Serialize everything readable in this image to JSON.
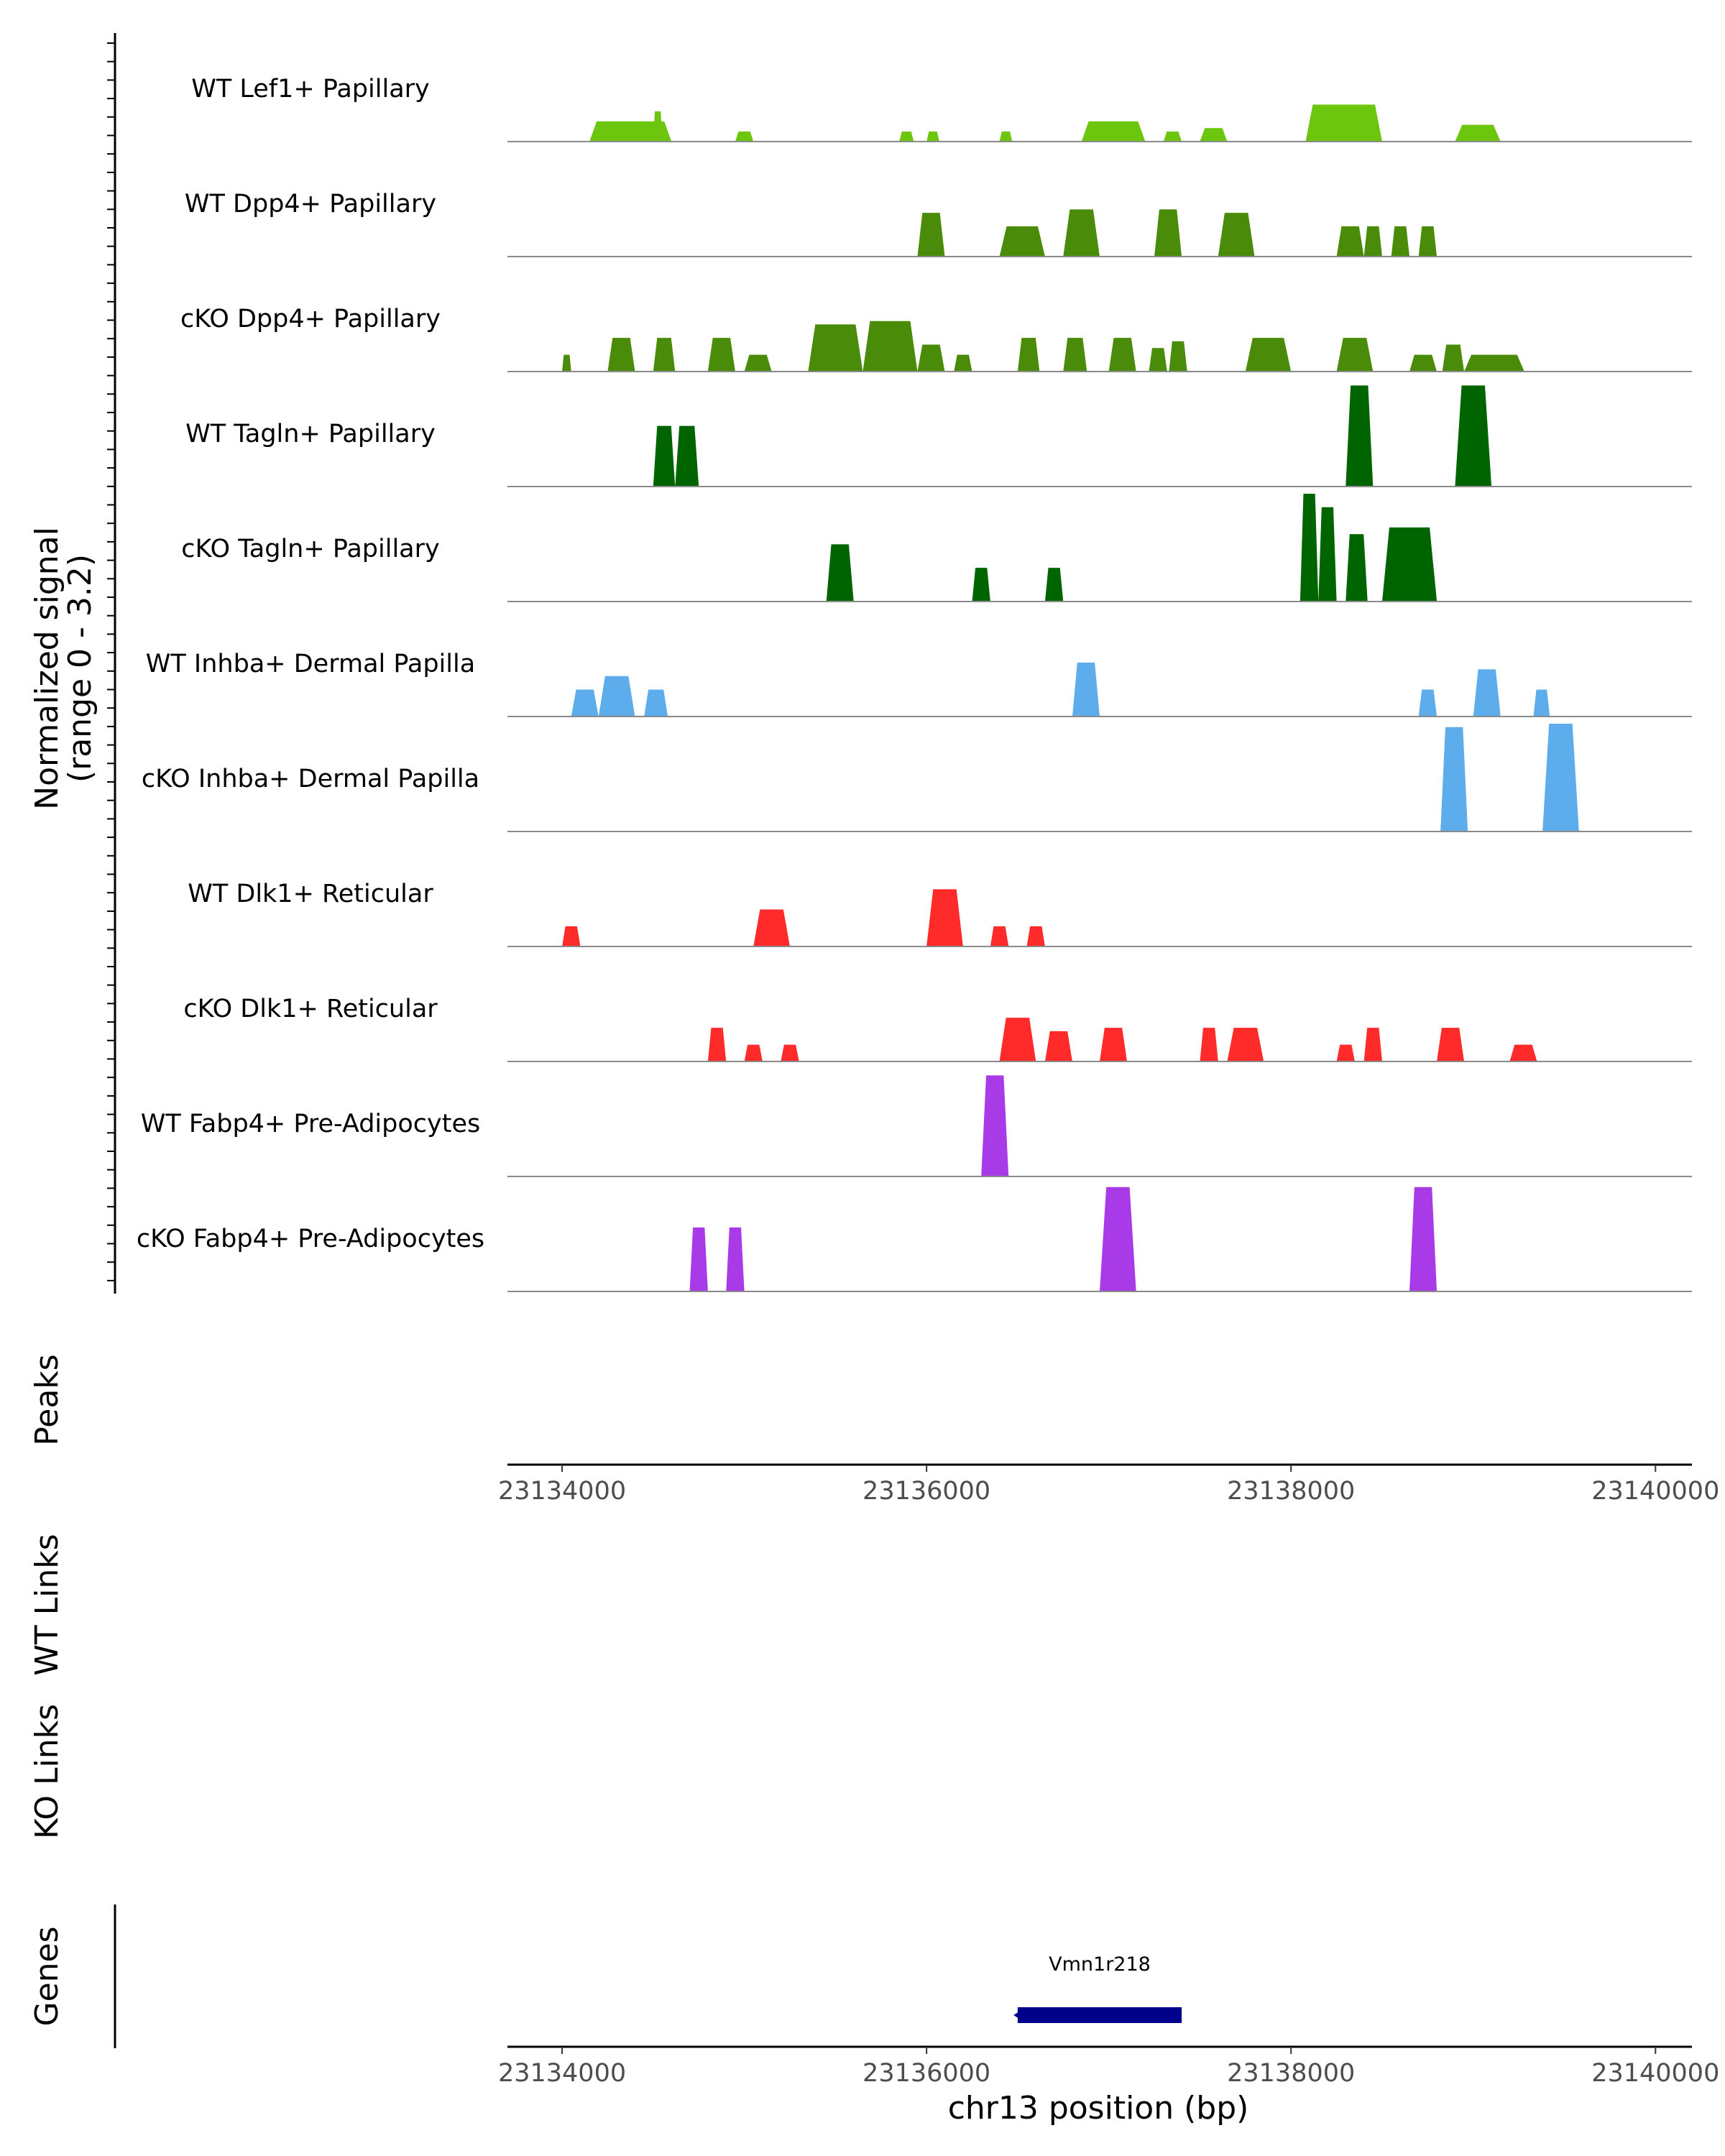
{
  "chart_data": {
    "type": "area",
    "chromosome": "chr13",
    "xlim": [
      23133700,
      23140200
    ],
    "x_ticks": [
      23134000,
      23136000,
      23138000,
      23140000
    ],
    "x_tick_labels": [
      "23134000",
      "23136000",
      "23138000",
      "23140000"
    ],
    "xlabel": "chr13 position (bp)",
    "ylabel_line1": "Normalized signal",
    "ylabel_line2": "(range 0 - 3.2)",
    "ylim": [
      0,
      3.2
    ],
    "panel_labels": {
      "peaks": "Peaks",
      "wt_links": "WT Links",
      "ko_links": "KO Links",
      "genes": "Genes"
    },
    "tracks": [
      {
        "name": "WT Lef1+ Papillary",
        "color": "#6CC60D",
        "peaks": [
          [
            23134150,
            23134600,
            0.6
          ],
          [
            23134500,
            23134550,
            0.9
          ],
          [
            23134950,
            23135050,
            0.3
          ],
          [
            23135850,
            23135930,
            0.3
          ],
          [
            23136000,
            23136070,
            0.3
          ],
          [
            23136400,
            23136470,
            0.3
          ],
          [
            23136850,
            23137200,
            0.6
          ],
          [
            23137300,
            23137400,
            0.3
          ],
          [
            23137500,
            23137650,
            0.4
          ],
          [
            23138080,
            23138500,
            1.1
          ],
          [
            23138900,
            23139150,
            0.5
          ]
        ]
      },
      {
        "name": "WT Dpp4+ Papillary",
        "color": "#4A8C0A",
        "peaks": [
          [
            23135950,
            23136100,
            1.3
          ],
          [
            23136400,
            23136650,
            0.9
          ],
          [
            23136750,
            23136950,
            1.4
          ],
          [
            23137250,
            23137400,
            1.4
          ],
          [
            23137600,
            23137800,
            1.3
          ],
          [
            23138250,
            23138400,
            0.9
          ],
          [
            23138400,
            23138500,
            0.9
          ],
          [
            23138550,
            23138650,
            0.9
          ],
          [
            23138700,
            23138800,
            0.9
          ]
        ]
      },
      {
        "name": "cKO Dpp4+ Papillary",
        "color": "#4A8C0A",
        "peaks": [
          [
            23134000,
            23134050,
            0.5
          ],
          [
            23134250,
            23134400,
            1.0
          ],
          [
            23134500,
            23134620,
            1.0
          ],
          [
            23134800,
            23134950,
            1.0
          ],
          [
            23135000,
            23135150,
            0.5
          ],
          [
            23135350,
            23135650,
            1.4
          ],
          [
            23135650,
            23135950,
            1.5
          ],
          [
            23135950,
            23136100,
            0.8
          ],
          [
            23136150,
            23136250,
            0.5
          ],
          [
            23136500,
            23136620,
            1.0
          ],
          [
            23136750,
            23136880,
            1.0
          ],
          [
            23137000,
            23137150,
            1.0
          ],
          [
            23137220,
            23137320,
            0.7
          ],
          [
            23137330,
            23137430,
            0.9
          ],
          [
            23137750,
            23138000,
            1.0
          ],
          [
            23138250,
            23138450,
            1.0
          ],
          [
            23138650,
            23138800,
            0.5
          ],
          [
            23138830,
            23138950,
            0.8
          ],
          [
            23138950,
            23139280,
            0.5
          ]
        ]
      },
      {
        "name": "WT Tagln+ Papillary",
        "color": "#006400",
        "peaks": [
          [
            23134500,
            23134620,
            1.8
          ],
          [
            23134620,
            23134750,
            1.8
          ],
          [
            23138300,
            23138450,
            3.0
          ],
          [
            23138900,
            23139100,
            3.0
          ]
        ]
      },
      {
        "name": "cKO Tagln+ Papillary",
        "color": "#006400",
        "peaks": [
          [
            23135450,
            23135600,
            1.7
          ],
          [
            23136250,
            23136350,
            1.0
          ],
          [
            23136650,
            23136750,
            1.0
          ],
          [
            23138050,
            23138150,
            3.2
          ],
          [
            23138150,
            23138250,
            2.8
          ],
          [
            23138300,
            23138420,
            2.0
          ],
          [
            23138500,
            23138800,
            2.2
          ],
          [
            23138700,
            23138800,
            1.0
          ]
        ]
      },
      {
        "name": "WT Inhba+ Dermal Papilla",
        "color": "#5DADEC",
        "peaks": [
          [
            23134050,
            23134200,
            0.8
          ],
          [
            23134200,
            23134400,
            1.2
          ],
          [
            23134450,
            23134580,
            0.8
          ],
          [
            23136800,
            23136950,
            1.6
          ],
          [
            23138700,
            23138800,
            0.8
          ],
          [
            23139000,
            23139150,
            1.4
          ],
          [
            23139330,
            23139420,
            0.8
          ]
        ]
      },
      {
        "name": "cKO Inhba+ Dermal Papilla",
        "color": "#5DADEC",
        "peaks": [
          [
            23138820,
            23138970,
            3.1
          ],
          [
            23139380,
            23139580,
            3.2
          ]
        ]
      },
      {
        "name": "WT Dlk1+ Reticular",
        "color": "#FF2A2A",
        "peaks": [
          [
            23134000,
            23134100,
            0.6
          ],
          [
            23135050,
            23135250,
            1.1
          ],
          [
            23136000,
            23136200,
            1.7
          ],
          [
            23136350,
            23136450,
            0.6
          ],
          [
            23136550,
            23136650,
            0.6
          ]
        ]
      },
      {
        "name": "cKO Dlk1+ Reticular",
        "color": "#FF2A2A",
        "peaks": [
          [
            23134800,
            23134900,
            1.0
          ],
          [
            23135000,
            23135100,
            0.5
          ],
          [
            23135200,
            23135300,
            0.5
          ],
          [
            23136400,
            23136600,
            1.3
          ],
          [
            23136650,
            23136800,
            0.9
          ],
          [
            23136950,
            23137100,
            1.0
          ],
          [
            23137500,
            23137600,
            1.0
          ],
          [
            23137650,
            23137850,
            1.0
          ],
          [
            23138250,
            23138350,
            0.5
          ],
          [
            23138400,
            23138500,
            1.0
          ],
          [
            23138800,
            23138950,
            1.0
          ],
          [
            23139200,
            23139350,
            0.5
          ]
        ]
      },
      {
        "name": "WT Fabp4+ Pre-Adipocytes",
        "color": "#A83AE8",
        "peaks": [
          [
            23136300,
            23136450,
            3.0
          ]
        ]
      },
      {
        "name": "cKO Fabp4+ Pre-Adipocytes",
        "color": "#A83AE8",
        "peaks": [
          [
            23134700,
            23134800,
            1.9
          ],
          [
            23134900,
            23135000,
            1.9
          ],
          [
            23136950,
            23137150,
            3.1
          ],
          [
            23138650,
            23138800,
            3.1
          ]
        ]
      }
    ],
    "genes": [
      {
        "name": "Vmn1r218",
        "start": 23136500,
        "end": 23137400,
        "strand": "-",
        "color": "#00008B"
      }
    ]
  }
}
